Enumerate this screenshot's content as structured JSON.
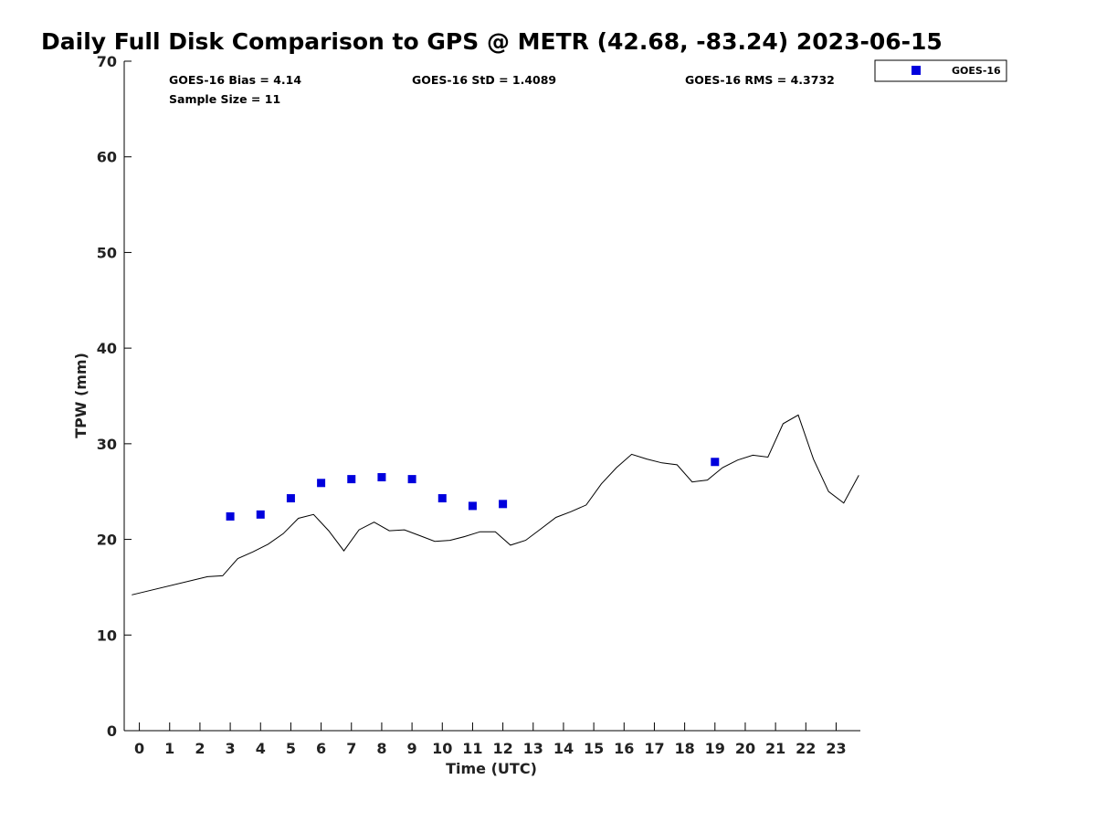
{
  "chart_data": {
    "type": "scatter",
    "title": "Daily Full Disk Comparison to GPS @ METR (42.68, -83.24) 2023-06-15",
    "xlabel": "Time (UTC)",
    "ylabel": "TPW (mm)",
    "xlim": [
      -0.5,
      23.8
    ],
    "ylim": [
      0,
      70
    ],
    "x_ticks": [
      0,
      1,
      2,
      3,
      4,
      5,
      6,
      7,
      8,
      9,
      10,
      11,
      12,
      13,
      14,
      15,
      16,
      17,
      18,
      19,
      20,
      21,
      22,
      23
    ],
    "x_tick_labels": [
      "0",
      "1",
      "2",
      "3",
      "4",
      "5",
      "6",
      "7",
      "8",
      "9",
      "10",
      "11",
      "12",
      "13",
      "14",
      "15",
      "16",
      "17",
      "18",
      "19",
      "20",
      "21",
      "22",
      "23"
    ],
    "y_ticks": [
      0,
      10,
      20,
      30,
      40,
      50,
      60,
      70
    ],
    "y_tick_labels": [
      "0",
      "10",
      "20",
      "30",
      "40",
      "50",
      "60",
      "70"
    ],
    "stats": {
      "bias": "GOES-16 Bias = 4.14",
      "std": "GOES-16 StD = 1.4089",
      "rms": "GOES-16 RMS = 4.3732",
      "sample_size": "Sample Size = 11"
    },
    "legend": {
      "label": "GOES-16",
      "placement": "top-right",
      "color": "#0000dd"
    },
    "series": [
      {
        "name": "GOES-16",
        "kind": "scatter",
        "marker": "square",
        "color": "#0000dd",
        "x": [
          3,
          4,
          5,
          6,
          7,
          8,
          9,
          10,
          11,
          12,
          19
        ],
        "y": [
          22.4,
          22.6,
          24.3,
          25.9,
          26.3,
          26.5,
          26.3,
          24.3,
          23.5,
          23.7,
          28.1
        ]
      },
      {
        "name": "GPS",
        "kind": "line",
        "color": "#000000",
        "x": [
          -0.25,
          2.25,
          2.75,
          3.25,
          3.75,
          4.25,
          4.75,
          5.25,
          5.75,
          6.25,
          6.75,
          7.25,
          7.75,
          8.25,
          8.75,
          9.25,
          9.75,
          10.25,
          10.75,
          11.25,
          11.75,
          12.25,
          12.75,
          13.25,
          13.75,
          14.25,
          14.75,
          15.25,
          15.75,
          16.25,
          16.75,
          17.25,
          17.75,
          18.25,
          18.75,
          19.25,
          19.75,
          20.25,
          20.75,
          21.25,
          21.75,
          22.25,
          22.75,
          23.25,
          23.75
        ],
        "y": [
          14.2,
          16.1,
          16.2,
          18.0,
          18.7,
          19.5,
          20.6,
          22.2,
          22.6,
          20.9,
          18.8,
          21.0,
          21.8,
          20.9,
          21.0,
          20.4,
          19.8,
          19.9,
          20.3,
          20.8,
          20.8,
          19.4,
          19.9,
          21.1,
          22.3,
          22.9,
          23.6,
          25.8,
          27.5,
          28.9,
          28.4,
          28.0,
          27.8,
          26.0,
          26.2,
          27.5,
          28.3,
          28.8,
          28.6,
          32.1,
          33.0,
          28.4,
          25.0,
          23.8,
          26.7
        ]
      }
    ]
  }
}
